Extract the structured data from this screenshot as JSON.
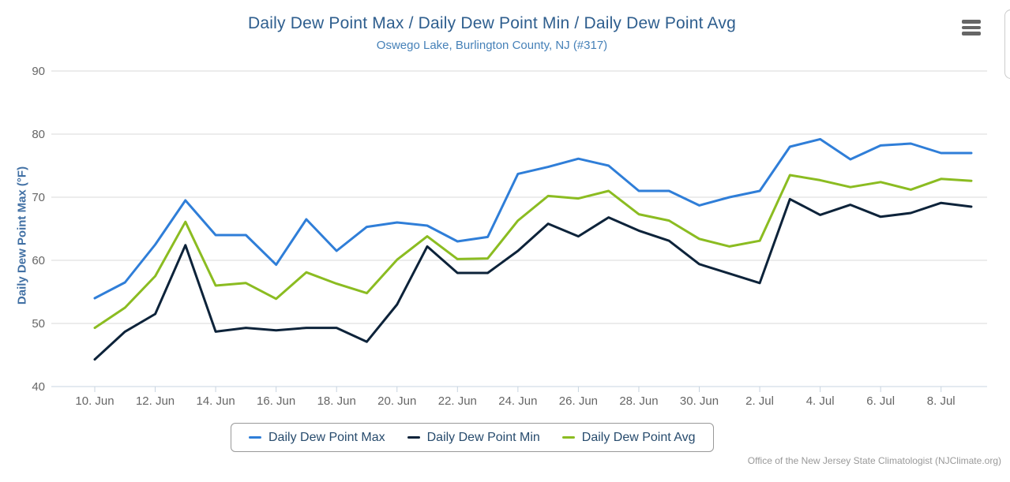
{
  "header": {
    "title": "Daily Dew Point Max / Daily Dew Point Min / Daily Dew Point Avg",
    "subtitle": "Oswego Lake, Burlington County, NJ (#317)"
  },
  "menu": {
    "icon": "hamburger-icon"
  },
  "credits": "Office of the New Jersey State Climatologist (NJClimate.org)",
  "colors": {
    "title_text": "#2e5e8e",
    "subtitle_text": "#4681b8",
    "y_axis_title_text": "#4170a4",
    "axis_label_text": "#666666",
    "gridline": "#d8d8d8",
    "axis_line": "#c8d4e0",
    "legend_border": "#999999",
    "legend_text": "#274b6d",
    "credits_text": "#999999"
  },
  "chart_data": {
    "type": "line",
    "title": "Daily Dew Point Max / Daily Dew Point Min / Daily Dew Point Avg",
    "subtitle": "Oswego Lake, Burlington County, NJ (#317)",
    "xlabel": "",
    "ylabel": "Daily Dew Point Max (°F)",
    "ylim": [
      40,
      90
    ],
    "yticks": [
      40,
      50,
      60,
      70,
      80,
      90
    ],
    "grid": "horizontal",
    "legend_position": "bottom",
    "xtick_labels": [
      "10. Jun",
      "12. Jun",
      "14. Jun",
      "16. Jun",
      "18. Jun",
      "20. Jun",
      "22. Jun",
      "24. Jun",
      "26. Jun",
      "28. Jun",
      "30. Jun",
      "2. Jul",
      "4. Jul",
      "6. Jul",
      "8. Jul"
    ],
    "categories": [
      "10 Jun",
      "11 Jun",
      "12 Jun",
      "13 Jun",
      "14 Jun",
      "15 Jun",
      "16 Jun",
      "17 Jun",
      "18 Jun",
      "19 Jun",
      "20 Jun",
      "21 Jun",
      "22 Jun",
      "23 Jun",
      "24 Jun",
      "25 Jun",
      "26 Jun",
      "27 Jun",
      "28 Jun",
      "29 Jun",
      "30 Jun",
      "1 Jul",
      "2 Jul",
      "3 Jul",
      "4 Jul",
      "5 Jul",
      "6 Jul",
      "7 Jul",
      "8 Jul",
      "9 Jul"
    ],
    "series": [
      {
        "name": "Daily Dew Point Max",
        "color": "#2f7ed8",
        "values": [
          54,
          56.5,
          62.5,
          69.5,
          64,
          64,
          59.3,
          66.5,
          61.5,
          65.3,
          66,
          65.5,
          63,
          63.7,
          73.7,
          74.8,
          76.1,
          75,
          71,
          71,
          68.7,
          70,
          71,
          78,
          79.2,
          76,
          78.2,
          78.5,
          77,
          77
        ]
      },
      {
        "name": "Daily Dew Point Min",
        "color": "#0d233a",
        "values": [
          44.3,
          48.7,
          51.5,
          62.4,
          48.7,
          49.3,
          48.9,
          49.3,
          49.3,
          47.1,
          53,
          62.2,
          58,
          58,
          61.5,
          65.8,
          63.8,
          66.8,
          64.7,
          63.1,
          59.4,
          57.9,
          56.4,
          69.7,
          67.2,
          68.8,
          66.9,
          67.5,
          69.1,
          68.5
        ]
      },
      {
        "name": "Daily Dew Point Avg",
        "color": "#8bbc21",
        "values": [
          49.3,
          52.5,
          57.5,
          66.1,
          56,
          56.4,
          53.9,
          58.1,
          56.3,
          54.8,
          60.1,
          63.8,
          60.2,
          60.3,
          66.3,
          70.2,
          69.8,
          71,
          67.3,
          66.3,
          63.4,
          62.2,
          63.1,
          73.5,
          72.7,
          71.6,
          72.4,
          71.2,
          72.9,
          72.6
        ]
      }
    ]
  }
}
